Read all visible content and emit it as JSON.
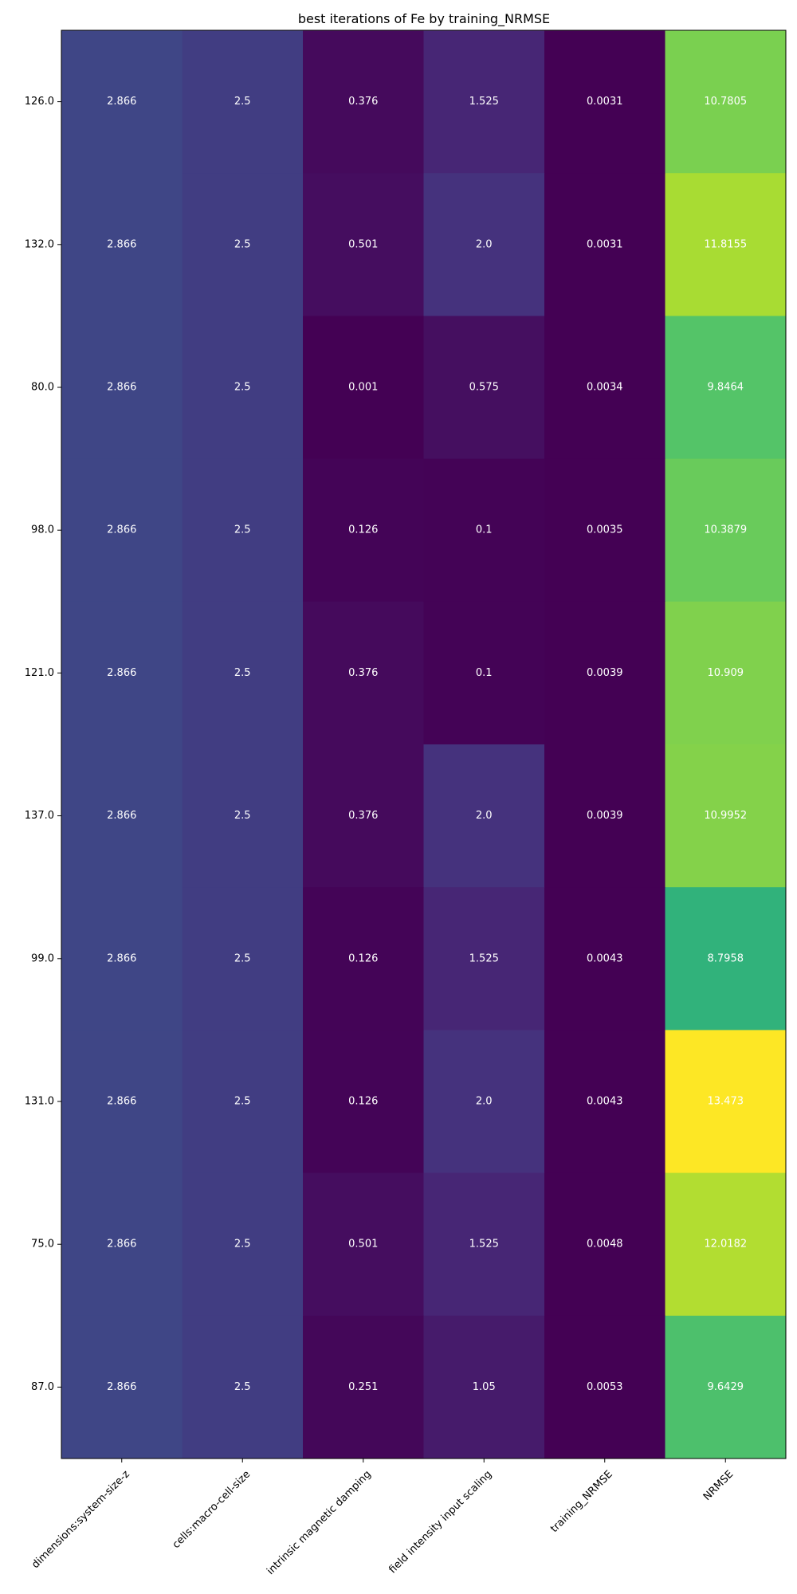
{
  "chart_data": {
    "type": "heatmap",
    "title": "best iterations of Fe by training_NRMSE",
    "xlabel": "",
    "ylabel": "",
    "columns": [
      "dimensions:system-size-z",
      "cells:macro-cell-size",
      "intrinsic magnetic damping",
      "field intensity input scaling",
      "training_NRMSE",
      "NRMSE"
    ],
    "rows": [
      "126.0",
      "132.0",
      "80.0",
      "98.0",
      "121.0",
      "137.0",
      "99.0",
      "131.0",
      "75.0",
      "87.0"
    ],
    "labels": [
      [
        "2.866",
        "2.5",
        "0.376",
        "1.525",
        "0.0031",
        "10.7805"
      ],
      [
        "2.866",
        "2.5",
        "0.501",
        "2.0",
        "0.0031",
        "11.8155"
      ],
      [
        "2.866",
        "2.5",
        "0.001",
        "0.575",
        "0.0034",
        "9.8464"
      ],
      [
        "2.866",
        "2.5",
        "0.126",
        "0.1",
        "0.0035",
        "10.3879"
      ],
      [
        "2.866",
        "2.5",
        "0.376",
        "0.1",
        "0.0039",
        "10.909"
      ],
      [
        "2.866",
        "2.5",
        "0.376",
        "2.0",
        "0.0039",
        "10.9952"
      ],
      [
        "2.866",
        "2.5",
        "0.126",
        "1.525",
        "0.0043",
        "8.7958"
      ],
      [
        "2.866",
        "2.5",
        "0.126",
        "2.0",
        "0.0043",
        "13.473"
      ],
      [
        "2.866",
        "2.5",
        "0.501",
        "1.525",
        "0.0048",
        "12.0182"
      ],
      [
        "2.866",
        "2.5",
        "0.251",
        "1.05",
        "0.0053",
        "9.6429"
      ]
    ],
    "colormap": "viridis",
    "color_range": [
      0,
      13.473
    ],
    "grid": false,
    "legend": "none"
  }
}
